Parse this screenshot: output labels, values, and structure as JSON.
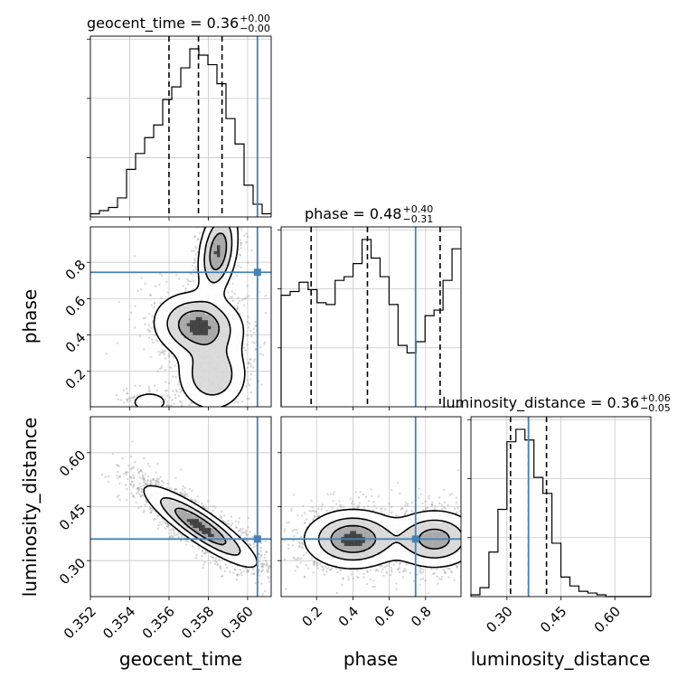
{
  "chart_data": {
    "type": "corner",
    "parameters": [
      "geocent_time",
      "phase",
      "luminosity_distance"
    ],
    "truth": {
      "geocent_time": 0.3605,
      "phase": 0.745,
      "luminosity_distance": 0.36
    },
    "truth_color": "#4682b4",
    "panel_titles": {
      "geocent_time": {
        "prefix": "geocent_time = 0.36",
        "sup": "+0.00",
        "sub": "−0.00"
      },
      "phase": {
        "prefix": "phase = 0.48",
        "sup": "+0.40",
        "sub": "−0.31"
      },
      "luminosity_distance": {
        "prefix": "luminosity_distance = 0.36",
        "sup": "+0.06",
        "sub": "−0.05"
      }
    },
    "axes": {
      "geocent_time": {
        "range": [
          0.352,
          0.3612
        ],
        "ticks": [
          0.352,
          0.354,
          0.356,
          0.358,
          0.36
        ],
        "tick_labels": [
          "0.352",
          "0.354",
          "0.356",
          "0.358",
          "0.360"
        ],
        "label": "geocent_time"
      },
      "phase": {
        "range": [
          0.005,
          0.995
        ],
        "ticks": [
          0.2,
          0.4,
          0.6,
          0.8
        ],
        "tick_labels": [
          "0.2",
          "0.4",
          "0.6",
          "0.8"
        ],
        "label": "phase"
      },
      "luminosity_distance": {
        "range": [
          0.2,
          0.7
        ],
        "ticks": [
          0.3,
          0.45,
          0.6
        ],
        "tick_labels": [
          "0.30",
          "0.45",
          "0.60"
        ],
        "label": "luminosity_distance"
      }
    },
    "hist1d": {
      "geocent_time": {
        "edges": [
          0.352,
          0.35246,
          0.35292,
          0.35338,
          0.35384,
          0.3543,
          0.35476,
          0.35522,
          0.35568,
          0.35614,
          0.3566,
          0.35706,
          0.35752,
          0.35798,
          0.35844,
          0.3589,
          0.35936,
          0.35982,
          0.36028,
          0.36074,
          0.3612
        ],
        "counts": [
          1,
          2,
          3,
          6,
          15,
          20,
          25,
          29,
          37,
          41,
          47,
          53,
          51,
          48,
          42,
          31,
          23,
          10,
          4,
          1
        ],
        "quantiles": [
          0.356,
          0.3575,
          0.3587
        ]
      },
      "phase": {
        "edges": [
          0.005,
          0.0545,
          0.104,
          0.1535,
          0.203,
          0.2525,
          0.302,
          0.3515,
          0.401,
          0.4505,
          0.5,
          0.5495,
          0.599,
          0.6485,
          0.698,
          0.7475,
          0.797,
          0.8465,
          0.896,
          0.9455,
          0.995
        ],
        "counts": [
          60,
          62,
          67,
          63,
          56,
          55,
          68,
          70,
          77,
          90,
          80,
          70,
          55,
          33,
          29,
          35,
          49,
          52,
          68,
          85
        ],
        "quantiles": [
          0.17,
          0.48,
          0.88
        ]
      },
      "luminosity_distance": {
        "edges": [
          0.2,
          0.225,
          0.25,
          0.275,
          0.3,
          0.325,
          0.35,
          0.375,
          0.4,
          0.425,
          0.45,
          0.475,
          0.5,
          0.525,
          0.55,
          0.575,
          0.6,
          0.625,
          0.65,
          0.675,
          0.7
        ],
        "counts": [
          1,
          5,
          25,
          49,
          87,
          94,
          88,
          67,
          58,
          30,
          11,
          6,
          3,
          2,
          1,
          0,
          0,
          0,
          0,
          0
        ],
        "quantiles": [
          0.31,
          0.36,
          0.41
        ]
      }
    },
    "contours2d": {
      "phase_vs_geocent_time": {
        "x": "geocent_time",
        "y": "phase",
        "components": [
          {
            "mx": 0.3585,
            "my": 0.86,
            "sx": 0.0005,
            "sy": 0.12,
            "rho": 0.3,
            "w": 0.32
          },
          {
            "mx": 0.3575,
            "my": 0.45,
            "sx": 0.0011,
            "sy": 0.09,
            "rho": -0.1,
            "w": 0.34
          },
          {
            "mx": 0.3582,
            "my": 0.18,
            "sx": 0.0009,
            "sy": 0.1,
            "rho": 0.0,
            "w": 0.22
          },
          {
            "mx": 0.355,
            "my": 0.03,
            "sx": 0.0005,
            "sy": 0.03,
            "rho": 0.0,
            "w": 0.12
          }
        ]
      },
      "luminosity_distance_vs_geocent_time": {
        "x": "geocent_time",
        "y": "luminosity_distance",
        "components": [
          {
            "mx": 0.3576,
            "my": 0.395,
            "sx": 0.0014,
            "sy": 0.055,
            "rho": -0.88,
            "w": 1.0
          }
        ]
      },
      "luminosity_distance_vs_phase": {
        "x": "phase",
        "y": "luminosity_distance",
        "components": [
          {
            "mx": 0.4,
            "my": 0.36,
            "sx": 0.13,
            "sy": 0.04,
            "rho": 0.0,
            "w": 0.55
          },
          {
            "mx": 0.85,
            "my": 0.36,
            "sx": 0.12,
            "sy": 0.04,
            "rho": 0.0,
            "w": 0.45
          }
        ]
      }
    }
  }
}
